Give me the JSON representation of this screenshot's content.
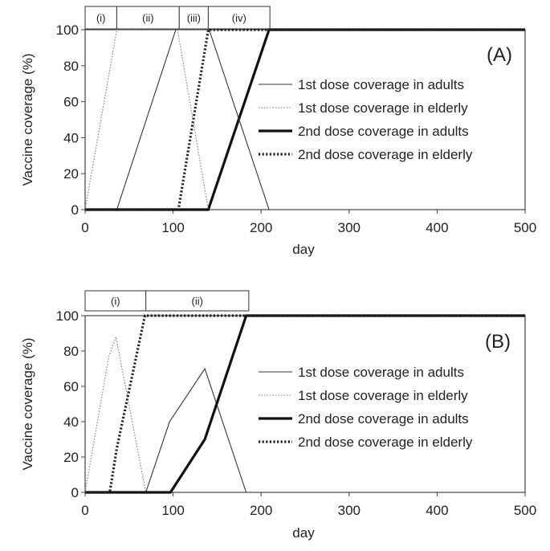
{
  "chart_data": [
    {
      "type": "line",
      "panel_label": "(A)",
      "xlabel": "day",
      "ylabel": "Vaccine coverage (%)",
      "xlim": [
        0,
        500
      ],
      "ylim": [
        0,
        100
      ],
      "xticks": [
        0,
        100,
        200,
        300,
        400,
        500
      ],
      "yticks": [
        0,
        20,
        40,
        60,
        80,
        100
      ],
      "phases": [
        {
          "label": "(i)",
          "start": 0,
          "end": 36
        },
        {
          "label": "(ii)",
          "start": 36,
          "end": 107
        },
        {
          "label": "(iii)",
          "start": 107,
          "end": 140
        },
        {
          "label": "(iv)",
          "start": 140,
          "end": 210
        }
      ],
      "series": [
        {
          "name": "1st dose coverage in adults",
          "style": "thin-solid",
          "points": [
            [
              0,
              0
            ],
            [
              36,
              0
            ],
            [
              103,
              100
            ],
            [
              500,
              100
            ]
          ]
        },
        {
          "name": "1st dose coverage in elderly",
          "style": "thin-dotted",
          "points": [
            [
              0,
              0
            ],
            [
              36,
              100
            ],
            [
              500,
              100
            ]
          ]
        },
        {
          "name": "2nd dose coverage in adults",
          "style": "thick-solid",
          "points": [
            [
              0,
              0
            ],
            [
              140,
              0
            ],
            [
              209,
              100
            ],
            [
              500,
              100
            ]
          ]
        },
        {
          "name": "2nd dose coverage in elderly",
          "style": "thick-dotted",
          "points": [
            [
              0,
              0
            ],
            [
              106,
              0
            ],
            [
              140,
              100
            ],
            [
              500,
              100
            ]
          ]
        }
      ],
      "extra_lines": [
        {
          "style": "thin-dotted",
          "points": [
            [
              105,
              100
            ],
            [
              140,
              0
            ]
          ]
        },
        {
          "style": "thin-solid",
          "points": [
            [
              141,
              100
            ],
            [
              209,
              0
            ]
          ]
        }
      ]
    },
    {
      "type": "line",
      "panel_label": "(B)",
      "xlabel": "day",
      "ylabel": "Vaccine coverage (%)",
      "xlim": [
        0,
        500
      ],
      "ylim": [
        0,
        100
      ],
      "xticks": [
        0,
        100,
        200,
        300,
        400,
        500
      ],
      "yticks": [
        0,
        20,
        40,
        60,
        80,
        100
      ],
      "phases": [
        {
          "label": "(i)",
          "start": 0,
          "end": 69
        },
        {
          "label": "(ii)",
          "start": 69,
          "end": 186
        }
      ],
      "series": [
        {
          "name": "1st dose coverage in adults",
          "style": "thin-solid",
          "points": [
            [
              0,
              0
            ],
            [
              69,
              0
            ],
            [
              96,
              40
            ],
            [
              136,
              70
            ],
            [
              183,
              0
            ]
          ]
        },
        {
          "name": "1st dose coverage in elderly",
          "style": "thin-dotted",
          "points": [
            [
              0,
              0
            ],
            [
              27,
              77
            ],
            [
              35,
              88
            ],
            [
              69,
              0
            ]
          ]
        },
        {
          "name": "2nd dose coverage in adults",
          "style": "thick-solid",
          "points": [
            [
              0,
              0
            ],
            [
              97,
              0
            ],
            [
              136,
              30
            ],
            [
              183,
              100
            ],
            [
              500,
              100
            ]
          ]
        },
        {
          "name": "2nd dose coverage in elderly",
          "style": "thick-dotted",
          "points": [
            [
              0,
              0
            ],
            [
              28,
              0
            ],
            [
              36,
              25
            ],
            [
              68,
              100
            ],
            [
              500,
              100
            ]
          ]
        }
      ],
      "extra_lines": []
    }
  ]
}
